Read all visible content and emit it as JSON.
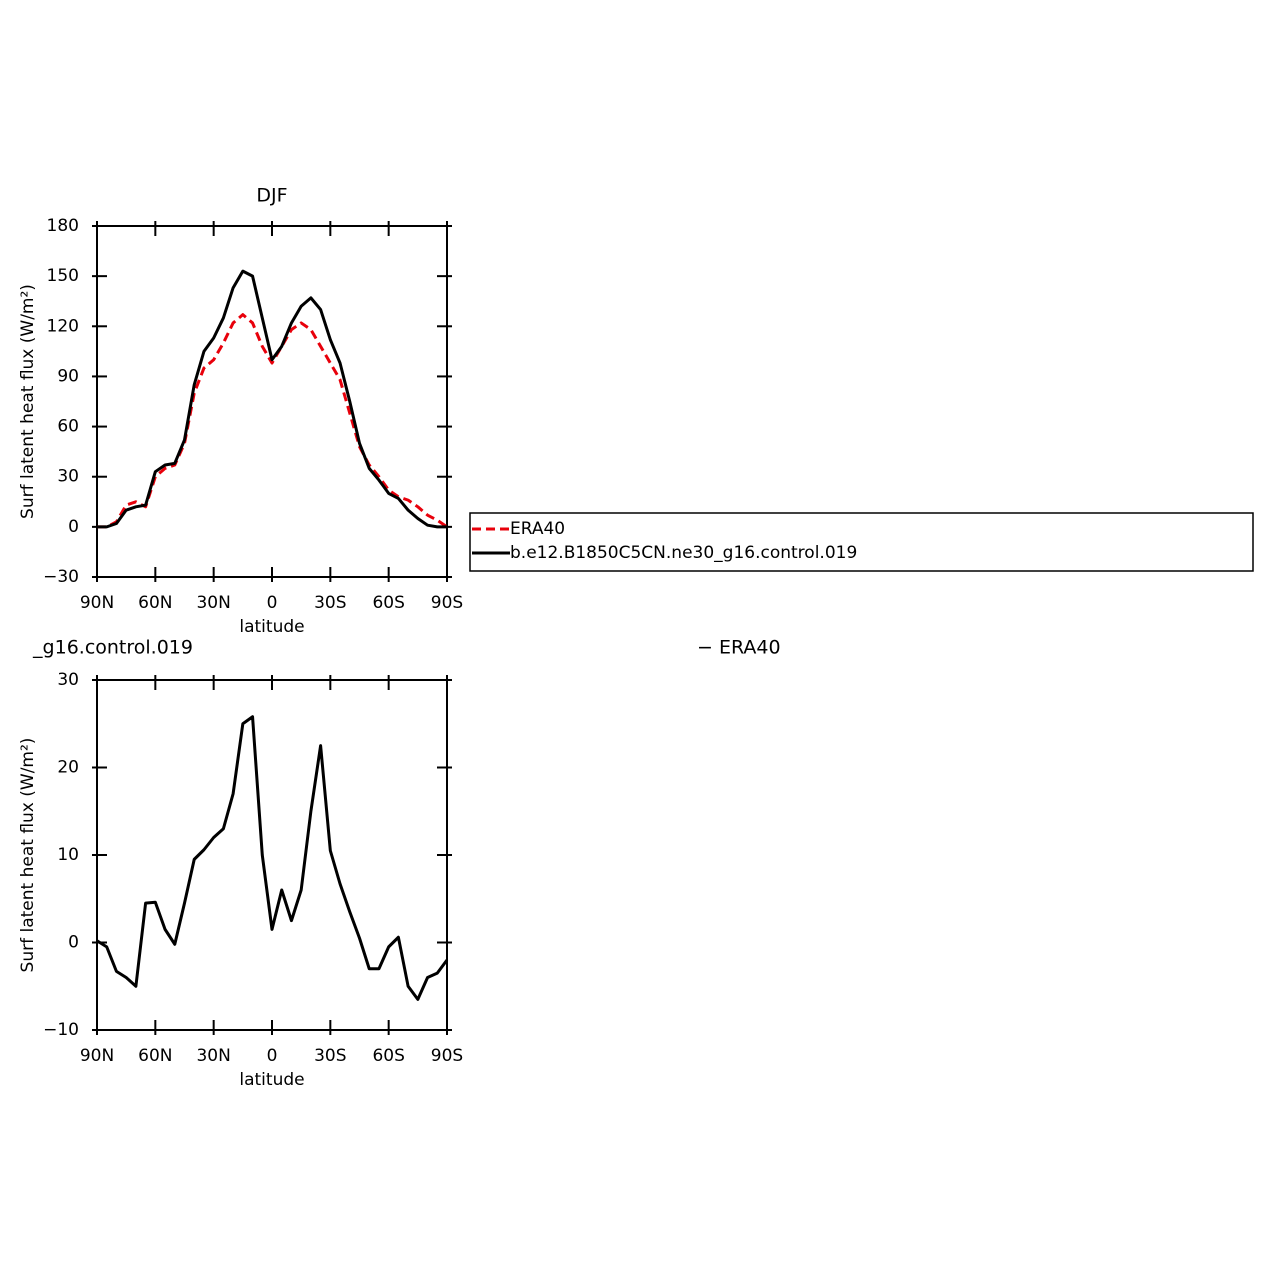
{
  "chart_data": [
    {
      "type": "line",
      "title": "DJF",
      "xlabel": "latitude",
      "ylabel": "Surf latent heat flux (W/m²)",
      "x": [
        90,
        85,
        80,
        75,
        70,
        65,
        60,
        55,
        50,
        45,
        40,
        35,
        30,
        25,
        20,
        15,
        10,
        5,
        0,
        -5,
        -10,
        -15,
        -20,
        -25,
        -30,
        -35,
        -40,
        -45,
        -50,
        -55,
        -60,
        -65,
        -70,
        -75,
        -80,
        -85,
        -90
      ],
      "xlim": [
        90,
        -90
      ],
      "xticks": [
        {
          "value": 90,
          "label": "90N"
        },
        {
          "value": 60,
          "label": "60N"
        },
        {
          "value": 30,
          "label": "30N"
        },
        0,
        {
          "value": -30,
          "label": "30S"
        },
        {
          "value": -60,
          "label": "60S"
        },
        {
          "value": -90,
          "label": "90S"
        }
      ],
      "ylim": [
        -30,
        180
      ],
      "yticks": [
        {
          "value": -30,
          "label": "−30"
        },
        0,
        30,
        60,
        90,
        120,
        150,
        180
      ],
      "legend": "right",
      "series": [
        {
          "name": "ERA40",
          "color": "#e8000b",
          "dashed": true,
          "values": [
            0,
            0,
            3,
            13,
            15,
            12,
            30,
            35,
            37,
            50,
            80,
            95,
            100,
            110,
            122,
            127,
            122,
            108,
            98,
            108,
            118,
            122,
            118,
            108,
            98,
            88,
            68,
            48,
            37,
            30,
            22,
            18,
            16,
            12,
            7,
            4,
            0
          ]
        },
        {
          "name": "b.e12.B1850C5CN.ne30_g16.control.019",
          "color": "#000000",
          "dashed": false,
          "values": [
            0,
            0,
            2,
            10,
            12,
            13,
            33,
            37,
            38,
            52,
            85,
            105,
            113,
            125,
            143,
            153,
            150,
            125,
            100,
            108,
            122,
            132,
            137,
            130,
            112,
            98,
            75,
            50,
            35,
            28,
            20,
            17,
            10,
            5,
            1,
            0,
            0
          ]
        }
      ]
    },
    {
      "type": "line",
      "title": "_g16.control.019",
      "title_right": "− ERA40",
      "xlabel": "latitude",
      "ylabel": "Surf latent heat flux (W/m²)",
      "x": [
        90,
        85,
        80,
        75,
        70,
        65,
        60,
        55,
        50,
        45,
        40,
        35,
        30,
        25,
        20,
        15,
        10,
        5,
        0,
        -5,
        -10,
        -15,
        -20,
        -25,
        -30,
        -35,
        -40,
        -45,
        -50,
        -55,
        -60,
        -65,
        -70,
        -75,
        -80,
        -85,
        -90
      ],
      "xlim": [
        90,
        -90
      ],
      "xticks": [
        {
          "value": 90,
          "label": "90N"
        },
        {
          "value": 60,
          "label": "60N"
        },
        {
          "value": 30,
          "label": "30N"
        },
        0,
        {
          "value": -30,
          "label": "30S"
        },
        {
          "value": -60,
          "label": "60S"
        },
        {
          "value": -90,
          "label": "90S"
        }
      ],
      "ylim": [
        -10,
        30
      ],
      "yticks": [
        {
          "value": -10,
          "label": "−10"
        },
        0,
        10,
        20,
        30
      ],
      "series": [
        {
          "color": "#000000",
          "dashed": false,
          "values": [
            0.2,
            -0.5,
            -3.3,
            -4,
            -5,
            4.5,
            4.6,
            1.5,
            -0.2,
            4.5,
            9.5,
            10.6,
            12,
            13,
            17,
            25,
            25.8,
            10,
            1.5,
            6,
            2.5,
            6,
            15,
            22.5,
            10.5,
            6.7,
            3.5,
            0.5,
            -3,
            -3,
            -0.5,
            0.6,
            -5,
            -6.5,
            -4,
            -3.5,
            -2
          ]
        }
      ]
    }
  ]
}
